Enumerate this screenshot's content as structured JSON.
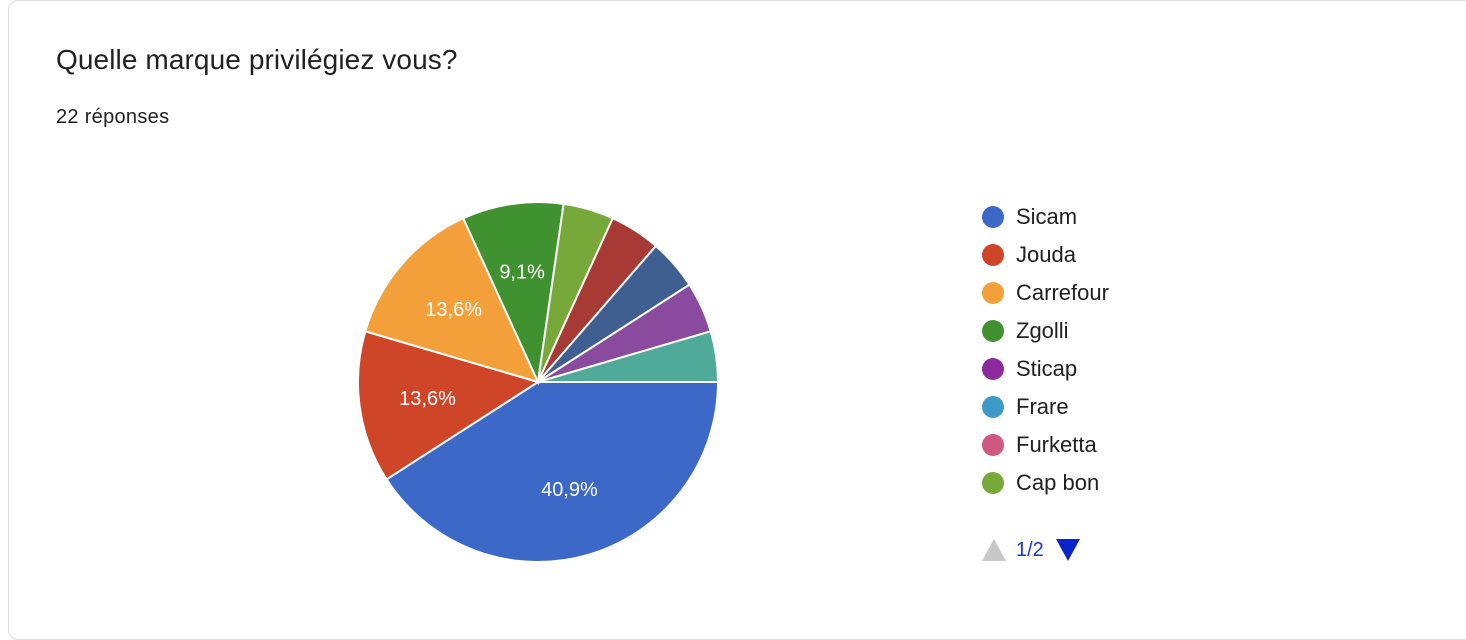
{
  "header": {
    "title": "Quelle marque privilégiez vous?",
    "responses": "22 réponses"
  },
  "chart_data": {
    "type": "pie",
    "slices": [
      {
        "label": "Sicam",
        "value": 9,
        "percent_label": "40,9%",
        "color": "#3c68c8"
      },
      {
        "label": "Jouda",
        "value": 3,
        "percent_label": "13,6%",
        "color": "#cf4527"
      },
      {
        "label": "Carrefour",
        "value": 3,
        "percent_label": "13,6%",
        "color": "#f4a03a"
      },
      {
        "label": "Zgolli",
        "value": 2,
        "percent_label": "9,1%",
        "color": "#40912f"
      },
      {
        "label": "",
        "value": 1,
        "percent_label": "",
        "color": "#76a83a"
      },
      {
        "label": "",
        "value": 1,
        "percent_label": "",
        "color": "#a73a35"
      },
      {
        "label": "",
        "value": 1,
        "percent_label": "",
        "color": "#3e5f8f"
      },
      {
        "label": "",
        "value": 1,
        "percent_label": "",
        "color": "#8a4a9e"
      },
      {
        "label": "",
        "value": 1,
        "percent_label": "",
        "color": "#4faa9a"
      }
    ],
    "legend_position": "right"
  },
  "legend": {
    "items": [
      {
        "label": "Sicam",
        "color": "#3c68c8"
      },
      {
        "label": "Jouda",
        "color": "#cf4527"
      },
      {
        "label": "Carrefour",
        "color": "#f4a03a"
      },
      {
        "label": "Zgolli",
        "color": "#40912f"
      },
      {
        "label": "Sticap",
        "color": "#8e2aa0"
      },
      {
        "label": "Frare",
        "color": "#3d9ac6"
      },
      {
        "label": "Furketta",
        "color": "#cf5781"
      },
      {
        "label": "Cap bon",
        "color": "#76a83a"
      }
    ],
    "page_indicator": "1/2"
  }
}
